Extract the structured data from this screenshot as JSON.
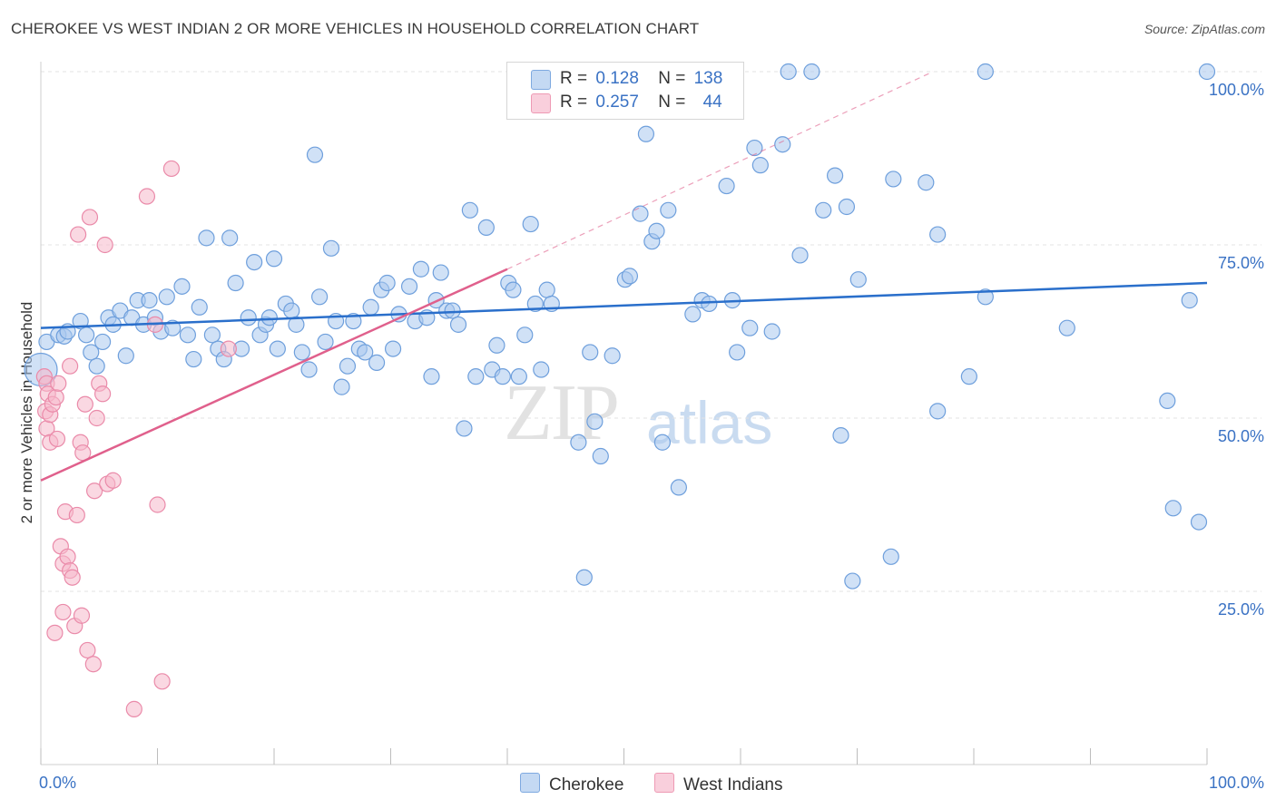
{
  "header": {
    "title": "CHEROKEE VS WEST INDIAN 2 OR MORE VEHICLES IN HOUSEHOLD CORRELATION CHART",
    "source": "Source: ZipAtlas.com"
  },
  "legend": {
    "rows": [
      {
        "r_label": "R =",
        "r_value": "0.128",
        "n_label": "N =",
        "n_value": "138",
        "color": "#a9c8ef"
      },
      {
        "r_label": "R =",
        "r_value": "0.257",
        "n_label": "N =",
        "n_value": "44",
        "color": "#f5b8cb"
      }
    ]
  },
  "bottom_legend": [
    {
      "label": "Cherokee",
      "color": "#a9c8ef"
    },
    {
      "label": "West Indians",
      "color": "#f5b8cb"
    }
  ],
  "watermark": {
    "zip": "ZIP",
    "atlas": "atlas"
  },
  "chart_data": {
    "type": "scatter",
    "title": "CHEROKEE VS WEST INDIAN 2 OR MORE VEHICLES IN HOUSEHOLD CORRELATION CHART",
    "xlabel": "",
    "ylabel": "2 or more Vehicles in Household",
    "xlim": [
      0,
      100
    ],
    "ylim": [
      0,
      100
    ],
    "x_tick_labels": [
      "0.0%",
      "100.0%"
    ],
    "y_tick_labels": [
      "25.0%",
      "50.0%",
      "75.0%",
      "100.0%"
    ],
    "y_ticks": [
      25,
      50,
      75,
      100
    ],
    "grid": true,
    "legend_position": "top-center",
    "colors": {
      "cherokee_fill": "#a9c8ef",
      "cherokee_stroke": "#6e9fdc",
      "cherokee_line": "#2a6fcb",
      "west_fill": "#f5b8cb",
      "west_stroke": "#ea8aa9",
      "west_line": "#e0608c"
    },
    "series": [
      {
        "name": "Cherokee",
        "R": 0.128,
        "N": 138,
        "trend": {
          "x": [
            0,
            100
          ],
          "y": [
            63.0,
            69.5
          ]
        },
        "points": [
          [
            0.5,
            61.0
          ],
          [
            1.5,
            62.0
          ],
          [
            2.0,
            61.8
          ],
          [
            2.3,
            62.5
          ],
          [
            3.4,
            64.0
          ],
          [
            3.9,
            62.0
          ],
          [
            4.3,
            59.5
          ],
          [
            4.8,
            57.5
          ],
          [
            5.3,
            61.0
          ],
          [
            5.8,
            64.5
          ],
          [
            6.2,
            63.5
          ],
          [
            6.8,
            65.5
          ],
          [
            7.3,
            59.0
          ],
          [
            7.8,
            64.5
          ],
          [
            8.3,
            67.0
          ],
          [
            8.8,
            63.5
          ],
          [
            9.3,
            67.0
          ],
          [
            9.8,
            64.5
          ],
          [
            10.3,
            62.5
          ],
          [
            10.8,
            67.5
          ],
          [
            11.3,
            63.0
          ],
          [
            12.1,
            69.0
          ],
          [
            12.6,
            62.0
          ],
          [
            13.1,
            58.5
          ],
          [
            13.6,
            66.0
          ],
          [
            14.2,
            76.0
          ],
          [
            14.7,
            62.0
          ],
          [
            15.2,
            60.0
          ],
          [
            15.7,
            58.5
          ],
          [
            16.2,
            76.0
          ],
          [
            16.7,
            69.5
          ],
          [
            17.2,
            60.0
          ],
          [
            17.8,
            64.5
          ],
          [
            18.3,
            72.5
          ],
          [
            18.8,
            62.0
          ],
          [
            19.3,
            63.5
          ],
          [
            19.6,
            64.5
          ],
          [
            20.0,
            73.0
          ],
          [
            20.3,
            60.0
          ],
          [
            21.0,
            66.5
          ],
          [
            21.5,
            65.5
          ],
          [
            21.9,
            63.5
          ],
          [
            22.4,
            59.5
          ],
          [
            23.0,
            57.0
          ],
          [
            23.5,
            88.0
          ],
          [
            23.9,
            67.5
          ],
          [
            24.4,
            61.0
          ],
          [
            24.9,
            74.5
          ],
          [
            25.3,
            64.0
          ],
          [
            25.8,
            54.5
          ],
          [
            26.3,
            57.5
          ],
          [
            26.8,
            64.0
          ],
          [
            27.3,
            60.0
          ],
          [
            27.8,
            59.5
          ],
          [
            28.3,
            66.0
          ],
          [
            28.8,
            58.0
          ],
          [
            29.2,
            68.5
          ],
          [
            29.7,
            69.5
          ],
          [
            30.2,
            60.0
          ],
          [
            30.7,
            65.0
          ],
          [
            31.6,
            69.0
          ],
          [
            32.1,
            64.0
          ],
          [
            32.6,
            71.5
          ],
          [
            33.1,
            64.5
          ],
          [
            33.5,
            56.0
          ],
          [
            33.9,
            67.0
          ],
          [
            34.3,
            71.0
          ],
          [
            34.8,
            65.5
          ],
          [
            35.3,
            65.5
          ],
          [
            35.8,
            63.5
          ],
          [
            36.3,
            48.5
          ],
          [
            36.8,
            80.0
          ],
          [
            37.3,
            56.0
          ],
          [
            38.2,
            77.5
          ],
          [
            38.7,
            57.0
          ],
          [
            39.1,
            60.5
          ],
          [
            39.6,
            56.0
          ],
          [
            40.1,
            69.5
          ],
          [
            40.5,
            68.5
          ],
          [
            41.0,
            56.0
          ],
          [
            41.5,
            62.0
          ],
          [
            42.0,
            78.0
          ],
          [
            42.4,
            66.5
          ],
          [
            42.9,
            57.0
          ],
          [
            43.4,
            68.5
          ],
          [
            43.8,
            66.5
          ],
          [
            46.1,
            46.5
          ],
          [
            46.6,
            27.0
          ],
          [
            47.1,
            59.5
          ],
          [
            47.5,
            49.5
          ],
          [
            48.0,
            44.5
          ],
          [
            49.0,
            59.0
          ],
          [
            50.1,
            70.0
          ],
          [
            50.5,
            70.5
          ],
          [
            51.4,
            79.5
          ],
          [
            51.9,
            91.0
          ],
          [
            52.4,
            75.5
          ],
          [
            52.8,
            77.0
          ],
          [
            53.3,
            46.5
          ],
          [
            53.8,
            80.0
          ],
          [
            54.7,
            40.0
          ],
          [
            55.7,
            100.0
          ],
          [
            55.9,
            65.0
          ],
          [
            56.7,
            67.0
          ],
          [
            57.3,
            66.5
          ],
          [
            58.8,
            83.5
          ],
          [
            59.3,
            67.0
          ],
          [
            59.7,
            59.5
          ],
          [
            60.8,
            63.0
          ],
          [
            61.2,
            89.0
          ],
          [
            61.7,
            86.5
          ],
          [
            62.7,
            62.5
          ],
          [
            63.6,
            89.5
          ],
          [
            64.1,
            100.0
          ],
          [
            65.1,
            73.5
          ],
          [
            66.1,
            100.0
          ],
          [
            67.1,
            80.0
          ],
          [
            68.1,
            85.0
          ],
          [
            68.6,
            47.5
          ],
          [
            69.1,
            80.5
          ],
          [
            69.6,
            26.5
          ],
          [
            70.1,
            70.0
          ],
          [
            72.9,
            30.0
          ],
          [
            73.1,
            84.5
          ],
          [
            75.9,
            84.0
          ],
          [
            76.9,
            51.0
          ],
          [
            76.9,
            76.5
          ],
          [
            79.6,
            56.0
          ],
          [
            81.0,
            67.5
          ],
          [
            81.0,
            100.0
          ],
          [
            88.0,
            63.0
          ],
          [
            96.6,
            52.5
          ],
          [
            97.1,
            37.0
          ],
          [
            98.5,
            67.0
          ],
          [
            99.3,
            35.0
          ],
          [
            100.0,
            100.0
          ]
        ]
      },
      {
        "name": "West Indians",
        "R": 0.257,
        "N": 44,
        "trend": {
          "x": [
            0,
            40
          ],
          "y": [
            41.0,
            71.5
          ]
        },
        "trend_extension": {
          "x": [
            40,
            76.5
          ],
          "y": [
            71.5,
            100.0
          ]
        },
        "points": [
          [
            0.3,
            56.0
          ],
          [
            0.4,
            51.0
          ],
          [
            0.5,
            48.5
          ],
          [
            0.5,
            55.0
          ],
          [
            0.6,
            53.5
          ],
          [
            0.8,
            50.5
          ],
          [
            0.8,
            46.5
          ],
          [
            1.0,
            52.0
          ],
          [
            1.2,
            19.0
          ],
          [
            1.3,
            53.0
          ],
          [
            1.4,
            47.0
          ],
          [
            1.5,
            55.0
          ],
          [
            1.7,
            31.5
          ],
          [
            1.9,
            22.0
          ],
          [
            1.9,
            29.0
          ],
          [
            2.1,
            36.5
          ],
          [
            2.3,
            30.0
          ],
          [
            2.5,
            57.5
          ],
          [
            2.5,
            28.0
          ],
          [
            2.7,
            27.0
          ],
          [
            2.9,
            20.0
          ],
          [
            3.1,
            36.0
          ],
          [
            3.2,
            76.5
          ],
          [
            3.4,
            46.5
          ],
          [
            3.5,
            21.5
          ],
          [
            3.6,
            45.0
          ],
          [
            3.8,
            52.0
          ],
          [
            4.0,
            16.5
          ],
          [
            4.2,
            79.0
          ],
          [
            4.5,
            14.5
          ],
          [
            4.6,
            39.5
          ],
          [
            4.8,
            50.0
          ],
          [
            5.0,
            55.0
          ],
          [
            5.3,
            53.5
          ],
          [
            5.5,
            75.0
          ],
          [
            5.7,
            40.5
          ],
          [
            6.2,
            41.0
          ],
          [
            8.0,
            8.0
          ],
          [
            9.1,
            82.0
          ],
          [
            9.8,
            63.5
          ],
          [
            10.0,
            37.5
          ],
          [
            10.4,
            12.0
          ],
          [
            11.2,
            86.0
          ],
          [
            16.1,
            60.0
          ]
        ]
      }
    ]
  }
}
